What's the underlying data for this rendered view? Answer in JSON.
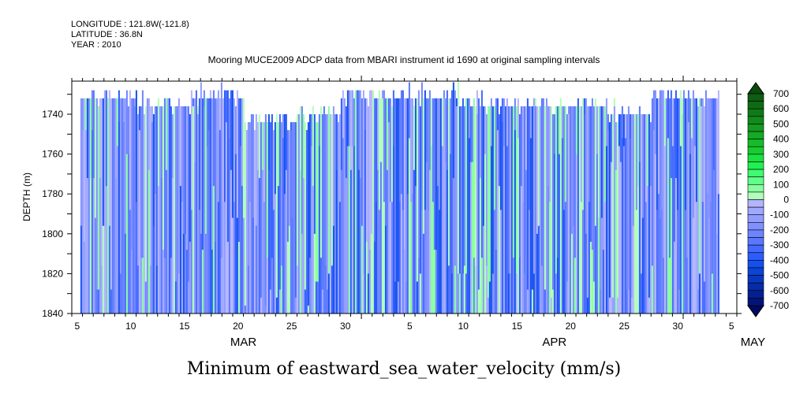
{
  "header": {
    "longitude": "LONGITUDE : 121.8W(-121.8)",
    "latitude": "LATITUDE : 36.8N",
    "year": "YEAR : 2010"
  },
  "chart_data": {
    "type": "heatmap",
    "title": "Mooring MUCE2009 ADCP data from MBARI instrument id 1690 at original sampling intervals",
    "bottom_title": "Minimum of eastward_sea_water_velocity (mm/s)",
    "ylabel": "DEPTH (m)",
    "ylim": [
      1723.4,
      1840
    ],
    "y_ticks": [
      1740,
      1760,
      1780,
      1800,
      1820,
      1840
    ],
    "x_range": [
      "2010-03-05",
      "2010-05-06"
    ],
    "data_time_range": [
      "2010-03-05T19:00",
      "2010-05-05T08:00"
    ],
    "x_tick_labels": [
      {
        "month": 3,
        "day": 5,
        "label": "5"
      },
      {
        "month": 3,
        "day": 10,
        "label": "10"
      },
      {
        "month": 3,
        "day": 15,
        "label": "15"
      },
      {
        "month": 3,
        "day": 20,
        "label": "20"
      },
      {
        "month": 3,
        "day": 25,
        "label": "25"
      },
      {
        "month": 3,
        "day": 30,
        "label": "30"
      },
      {
        "month": 4,
        "day": 5,
        "label": "5"
      },
      {
        "month": 4,
        "day": 10,
        "label": "10"
      },
      {
        "month": 4,
        "day": 15,
        "label": "15"
      },
      {
        "month": 4,
        "day": 20,
        "label": "20"
      },
      {
        "month": 4,
        "day": 25,
        "label": "25"
      },
      {
        "month": 4,
        "day": 30,
        "label": "30"
      },
      {
        "month": 5,
        "day": 5,
        "label": "5"
      }
    ],
    "month_labels": [
      {
        "label": "MAR",
        "day_offset": 16
      },
      {
        "label": "APR",
        "day_offset": 45
      },
      {
        "label": "MAY",
        "day_offset": 63.5
      }
    ],
    "colorbar": {
      "levels_step": 50,
      "range": [
        -700,
        700
      ],
      "tick_labels": [
        "700",
        "600",
        "500",
        "400",
        "300",
        "200",
        "100",
        "0",
        "-100",
        "-200",
        "-300",
        "-400",
        "-500",
        "-600",
        "-700"
      ],
      "colors_top_to_bottom": [
        "#0d5e12",
        "#0e6b14",
        "#107a18",
        "#128a1c",
        "#139a20",
        "#14aa24",
        "#16bb2a",
        "#18cc30",
        "#1ae040",
        "#20f050",
        "#40fa70",
        "#60ff88",
        "#88ff9f",
        "#b0ffb8",
        "#b4b4ff",
        "#a0a8ff",
        "#909cff",
        "#8090ff",
        "#6e84ff",
        "#5a78ff",
        "#4468ff",
        "#2c5cff",
        "#1450f0",
        "#0a44d8",
        "#0838c0",
        "#062ca8",
        "#042090",
        "#021478"
      ],
      "over_color": "#0a4a0a",
      "under_color": "#000a60"
    }
  }
}
